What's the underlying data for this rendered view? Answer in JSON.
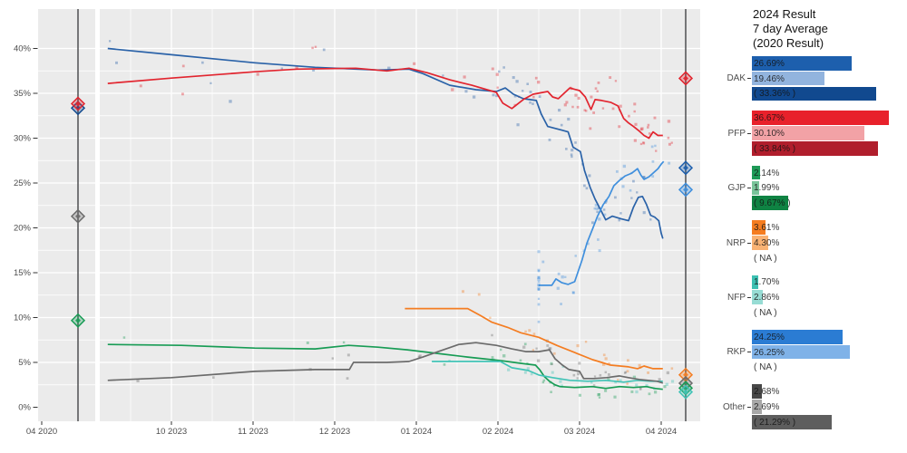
{
  "page": {
    "background": "#ffffff",
    "panel_bg": "#ebebeb",
    "grid_color": "#ffffff",
    "axis_text_color": "#4d4d4d",
    "election_line_color": "#58595b"
  },
  "legend": {
    "title_lines": [
      "2024 Result",
      "7 day Average",
      "(2020 Result)"
    ],
    "row_meaning": [
      "2024 Result",
      "7 day Average",
      "(2020 Result)"
    ],
    "groups": [
      {
        "party": "DAK",
        "rows": [
          {
            "label": "26.69%",
            "value": 26.69,
            "color": "#1d5fad"
          },
          {
            "label": "19.46%",
            "value": 19.46,
            "color": "#92b4de"
          },
          {
            "label": "( 33.36% )",
            "value": 33.36,
            "color": "#11498f"
          }
        ]
      },
      {
        "party": "PFP",
        "rows": [
          {
            "label": "36.67%",
            "value": 36.67,
            "color": "#e8212b"
          },
          {
            "label": "30.10%",
            "value": 30.1,
            "color": "#f2a2a6"
          },
          {
            "label": "( 33.84% )",
            "value": 33.84,
            "color": "#b01e2c"
          }
        ]
      },
      {
        "party": "GJP",
        "rows": [
          {
            "label": "2.14%",
            "value": 2.14,
            "color": "#1e9a57"
          },
          {
            "label": "1.99%",
            "value": 1.99,
            "color": "#79c49a"
          },
          {
            "label": "( 9.67% )",
            "value": 9.67,
            "color": "#0f8343"
          }
        ]
      },
      {
        "party": "NRP",
        "rows": [
          {
            "label": "3.61%",
            "value": 3.61,
            "color": "#f57d20"
          },
          {
            "label": "4.30%",
            "value": 4.3,
            "color": "#f9b273"
          },
          {
            "label": "(  NA )",
            "value": 0,
            "color": null
          }
        ]
      },
      {
        "party": "NFP",
        "rows": [
          {
            "label": "1.70%",
            "value": 1.7,
            "color": "#3cc0b2"
          },
          {
            "label": "2.86%",
            "value": 2.86,
            "color": "#97dcd4"
          },
          {
            "label": "(  NA )",
            "value": 0,
            "color": null
          }
        ]
      },
      {
        "party": "RKP",
        "rows": [
          {
            "label": "24.25%",
            "value": 24.25,
            "color": "#2b7cd3"
          },
          {
            "label": "26.25%",
            "value": 26.25,
            "color": "#7fb2e8"
          },
          {
            "label": "(  NA )",
            "value": 0,
            "color": null
          }
        ]
      },
      {
        "party": "Other",
        "rows": [
          {
            "label": "2.68%",
            "value": 2.68,
            "color": "#474747"
          },
          {
            "label": "2.69%",
            "value": 2.69,
            "color": "#a8a8a8"
          },
          {
            "label": "( 21.29% )",
            "value": 21.29,
            "color": "#5e5e5e"
          }
        ]
      }
    ]
  },
  "chart_data": {
    "type": "line",
    "title": "",
    "xlabel": "",
    "ylabel": "",
    "x_axis": {
      "tick_labels": [
        "04 2020",
        "10 2023",
        "11 2023",
        "12 2023",
        "01 2024",
        "02 2024",
        "03 2024",
        "04 2024"
      ]
    },
    "y_axis": {
      "tick_labels": [
        "0%",
        "5%",
        "10%",
        "15%",
        "20%",
        "25%",
        "30%",
        "35%",
        "40%"
      ],
      "min": 0,
      "max": 40,
      "ylim": [
        -1.5,
        42
      ]
    },
    "grid": true,
    "legend_position": "right",
    "series": [
      {
        "name": "DAK",
        "color": "#2a62a8",
        "points": [
          [
            -0.78,
            40.0
          ],
          [
            0,
            39.3
          ],
          [
            1.02,
            38.4
          ],
          [
            1.76,
            37.9
          ],
          [
            2.53,
            37.6
          ],
          [
            2.91,
            37.7
          ],
          [
            3.08,
            37.2
          ],
          [
            3.41,
            35.9
          ],
          [
            3.73,
            35.4
          ],
          [
            3.98,
            35.2
          ],
          [
            4.09,
            35.6
          ],
          [
            4.19,
            34.9
          ],
          [
            4.31,
            34.4
          ],
          [
            4.47,
            34.2
          ],
          [
            4.53,
            32.7
          ],
          [
            4.61,
            31.3
          ],
          [
            4.78,
            30.9
          ],
          [
            4.86,
            30.7
          ],
          [
            4.92,
            29.0
          ],
          [
            5.01,
            28.5
          ],
          [
            5.06,
            26.4
          ],
          [
            5.13,
            24.5
          ],
          [
            5.19,
            23.2
          ],
          [
            5.27,
            21.8
          ],
          [
            5.32,
            20.9
          ],
          [
            5.4,
            21.3
          ],
          [
            5.51,
            21.0
          ],
          [
            5.6,
            20.8
          ],
          [
            5.66,
            22.3
          ],
          [
            5.72,
            23.4
          ],
          [
            5.77,
            23.5
          ],
          [
            5.82,
            22.6
          ],
          [
            5.87,
            21.4
          ],
          [
            5.92,
            21.2
          ],
          [
            5.97,
            20.8
          ],
          [
            6.0,
            19.4
          ],
          [
            6.02,
            18.8
          ]
        ]
      },
      {
        "name": "PFP",
        "color": "#e2252f",
        "points": [
          [
            -0.78,
            36.1
          ],
          [
            0,
            36.7
          ],
          [
            1.02,
            37.4
          ],
          [
            1.54,
            37.7
          ],
          [
            2.26,
            37.8
          ],
          [
            2.64,
            37.5
          ],
          [
            2.91,
            37.8
          ],
          [
            3.13,
            37.3
          ],
          [
            3.41,
            36.5
          ],
          [
            3.68,
            35.9
          ],
          [
            3.98,
            35.1
          ],
          [
            4.06,
            33.9
          ],
          [
            4.17,
            33.3
          ],
          [
            4.31,
            34.3
          ],
          [
            4.43,
            34.9
          ],
          [
            4.61,
            35.2
          ],
          [
            4.67,
            34.6
          ],
          [
            4.74,
            34.4
          ],
          [
            4.88,
            35.6
          ],
          [
            5.0,
            35.3
          ],
          [
            5.07,
            34.6
          ],
          [
            5.14,
            33.2
          ],
          [
            5.19,
            34.3
          ],
          [
            5.27,
            34.2
          ],
          [
            5.38,
            34.0
          ],
          [
            5.47,
            33.6
          ],
          [
            5.54,
            32.2
          ],
          [
            5.6,
            31.7
          ],
          [
            5.66,
            31.3
          ],
          [
            5.73,
            30.8
          ],
          [
            5.79,
            30.3
          ],
          [
            5.85,
            30.0
          ],
          [
            5.9,
            30.7
          ],
          [
            5.96,
            30.3
          ],
          [
            6.02,
            30.3
          ]
        ]
      },
      {
        "name": "RKP",
        "color": "#3f8fdd",
        "points": [
          [
            4.5,
            13.6
          ],
          [
            4.66,
            13.6
          ],
          [
            4.71,
            14.3
          ],
          [
            4.78,
            13.9
          ],
          [
            4.86,
            13.7
          ],
          [
            4.94,
            14.0
          ],
          [
            5.03,
            16.4
          ],
          [
            5.09,
            18.3
          ],
          [
            5.16,
            19.9
          ],
          [
            5.22,
            21.3
          ],
          [
            5.29,
            22.6
          ],
          [
            5.36,
            23.5
          ],
          [
            5.42,
            24.7
          ],
          [
            5.49,
            25.3
          ],
          [
            5.56,
            25.8
          ],
          [
            5.64,
            26.1
          ],
          [
            5.71,
            26.6
          ],
          [
            5.75,
            25.9
          ],
          [
            5.79,
            25.4
          ],
          [
            5.85,
            25.7
          ],
          [
            5.9,
            26.1
          ],
          [
            5.96,
            26.6
          ],
          [
            6.0,
            27.1
          ],
          [
            6.03,
            27.4
          ]
        ]
      },
      {
        "name": "GJP",
        "color": "#189c55",
        "points": [
          [
            -0.78,
            7.0
          ],
          [
            0.12,
            6.9
          ],
          [
            1.02,
            6.6
          ],
          [
            1.76,
            6.5
          ],
          [
            2.17,
            6.9
          ],
          [
            2.53,
            6.7
          ],
          [
            2.89,
            6.4
          ],
          [
            3.26,
            6.0
          ],
          [
            3.63,
            5.6
          ],
          [
            4.03,
            5.2
          ],
          [
            4.28,
            4.9
          ],
          [
            4.46,
            4.7
          ],
          [
            4.51,
            4.2
          ],
          [
            4.57,
            3.4
          ],
          [
            4.63,
            2.9
          ],
          [
            4.7,
            2.5
          ],
          [
            4.76,
            2.3
          ],
          [
            4.94,
            2.2
          ],
          [
            5.16,
            2.3
          ],
          [
            5.32,
            2.1
          ],
          [
            5.49,
            2.3
          ],
          [
            5.66,
            2.2
          ],
          [
            5.82,
            2.3
          ],
          [
            5.92,
            2.1
          ],
          [
            6.02,
            2.0
          ]
        ]
      },
      {
        "name": "NRP",
        "color": "#f47d22",
        "points": [
          [
            2.86,
            11.0
          ],
          [
            3.63,
            11.0
          ],
          [
            3.79,
            10.2
          ],
          [
            3.92,
            9.5
          ],
          [
            4.12,
            8.9
          ],
          [
            4.28,
            8.3
          ],
          [
            4.5,
            7.8
          ],
          [
            4.72,
            6.9
          ],
          [
            4.94,
            6.1
          ],
          [
            5.16,
            5.3
          ],
          [
            5.38,
            4.7
          ],
          [
            5.6,
            4.5
          ],
          [
            5.71,
            4.3
          ],
          [
            5.79,
            4.6
          ],
          [
            5.9,
            4.3
          ],
          [
            6.02,
            4.3
          ]
        ]
      },
      {
        "name": "NFP",
        "color": "#41c3b6",
        "points": [
          [
            3.19,
            5.1
          ],
          [
            4.03,
            5.1
          ],
          [
            4.17,
            4.4
          ],
          [
            4.37,
            4.1
          ],
          [
            4.5,
            3.6
          ],
          [
            4.67,
            3.3
          ],
          [
            4.88,
            3.0
          ],
          [
            5.1,
            2.9
          ],
          [
            5.32,
            3.0
          ],
          [
            5.54,
            2.8
          ],
          [
            5.71,
            3.0
          ],
          [
            5.87,
            2.9
          ],
          [
            6.02,
            2.9
          ]
        ]
      },
      {
        "name": "Other",
        "color": "#6b6b6b",
        "points": [
          [
            -0.78,
            3.0
          ],
          [
            0,
            3.3
          ],
          [
            1.02,
            4.0
          ],
          [
            1.76,
            4.2
          ],
          [
            2.18,
            4.2
          ],
          [
            2.23,
            5.0
          ],
          [
            2.64,
            5.0
          ],
          [
            2.91,
            5.1
          ],
          [
            3.08,
            5.6
          ],
          [
            3.3,
            6.3
          ],
          [
            3.52,
            7.0
          ],
          [
            3.73,
            7.2
          ],
          [
            3.98,
            6.9
          ],
          [
            4.17,
            6.5
          ],
          [
            4.34,
            6.2
          ],
          [
            4.5,
            6.2
          ],
          [
            4.63,
            6.4
          ],
          [
            4.7,
            5.4
          ],
          [
            4.79,
            4.7
          ],
          [
            4.87,
            4.2
          ],
          [
            5.0,
            4.0
          ],
          [
            5.05,
            3.2
          ],
          [
            5.18,
            3.2
          ],
          [
            5.33,
            3.3
          ],
          [
            5.49,
            3.5
          ],
          [
            5.6,
            3.3
          ],
          [
            5.73,
            3.1
          ],
          [
            5.84,
            3.0
          ],
          [
            5.95,
            2.9
          ],
          [
            6.02,
            2.7
          ]
        ]
      }
    ],
    "election_2020": {
      "label": "04 2020",
      "results": [
        {
          "party": "DAK",
          "value": 33.36,
          "color": "#11498f"
        },
        {
          "party": "PFP",
          "value": 33.84,
          "color": "#e2252f"
        },
        {
          "party": "Other",
          "value": 21.29,
          "color": "#6b6b6b"
        },
        {
          "party": "GJP",
          "value": 9.67,
          "color": "#189c55"
        }
      ]
    },
    "election_2024": {
      "label": "04 2024",
      "results": [
        {
          "party": "PFP",
          "value": 36.67,
          "color": "#e2252f"
        },
        {
          "party": "DAK",
          "value": 26.69,
          "color": "#1d5fad"
        },
        {
          "party": "RKP",
          "value": 24.25,
          "color": "#3f8fdd"
        },
        {
          "party": "NRP",
          "value": 3.61,
          "color": "#f47d22"
        },
        {
          "party": "Other",
          "value": 2.68,
          "color": "#6b6b6b"
        },
        {
          "party": "GJP",
          "value": 2.14,
          "color": "#189c55"
        },
        {
          "party": "NFP",
          "value": 1.7,
          "color": "#41c3b6"
        }
      ]
    },
    "scatter_jitter_approximation": {
      "seed": 42,
      "counts": {
        "DAK": 55,
        "PFP": 60,
        "RKP": 45,
        "GJP": 28,
        "NRP": 22,
        "NFP": 20,
        "Other": 32
      },
      "sigma": {
        "DAK": 1.6,
        "PFP": 1.6,
        "RKP": 1.6,
        "GJP": 0.9,
        "NRP": 0.9,
        "NFP": 0.8,
        "Other": 1.0
      }
    }
  }
}
